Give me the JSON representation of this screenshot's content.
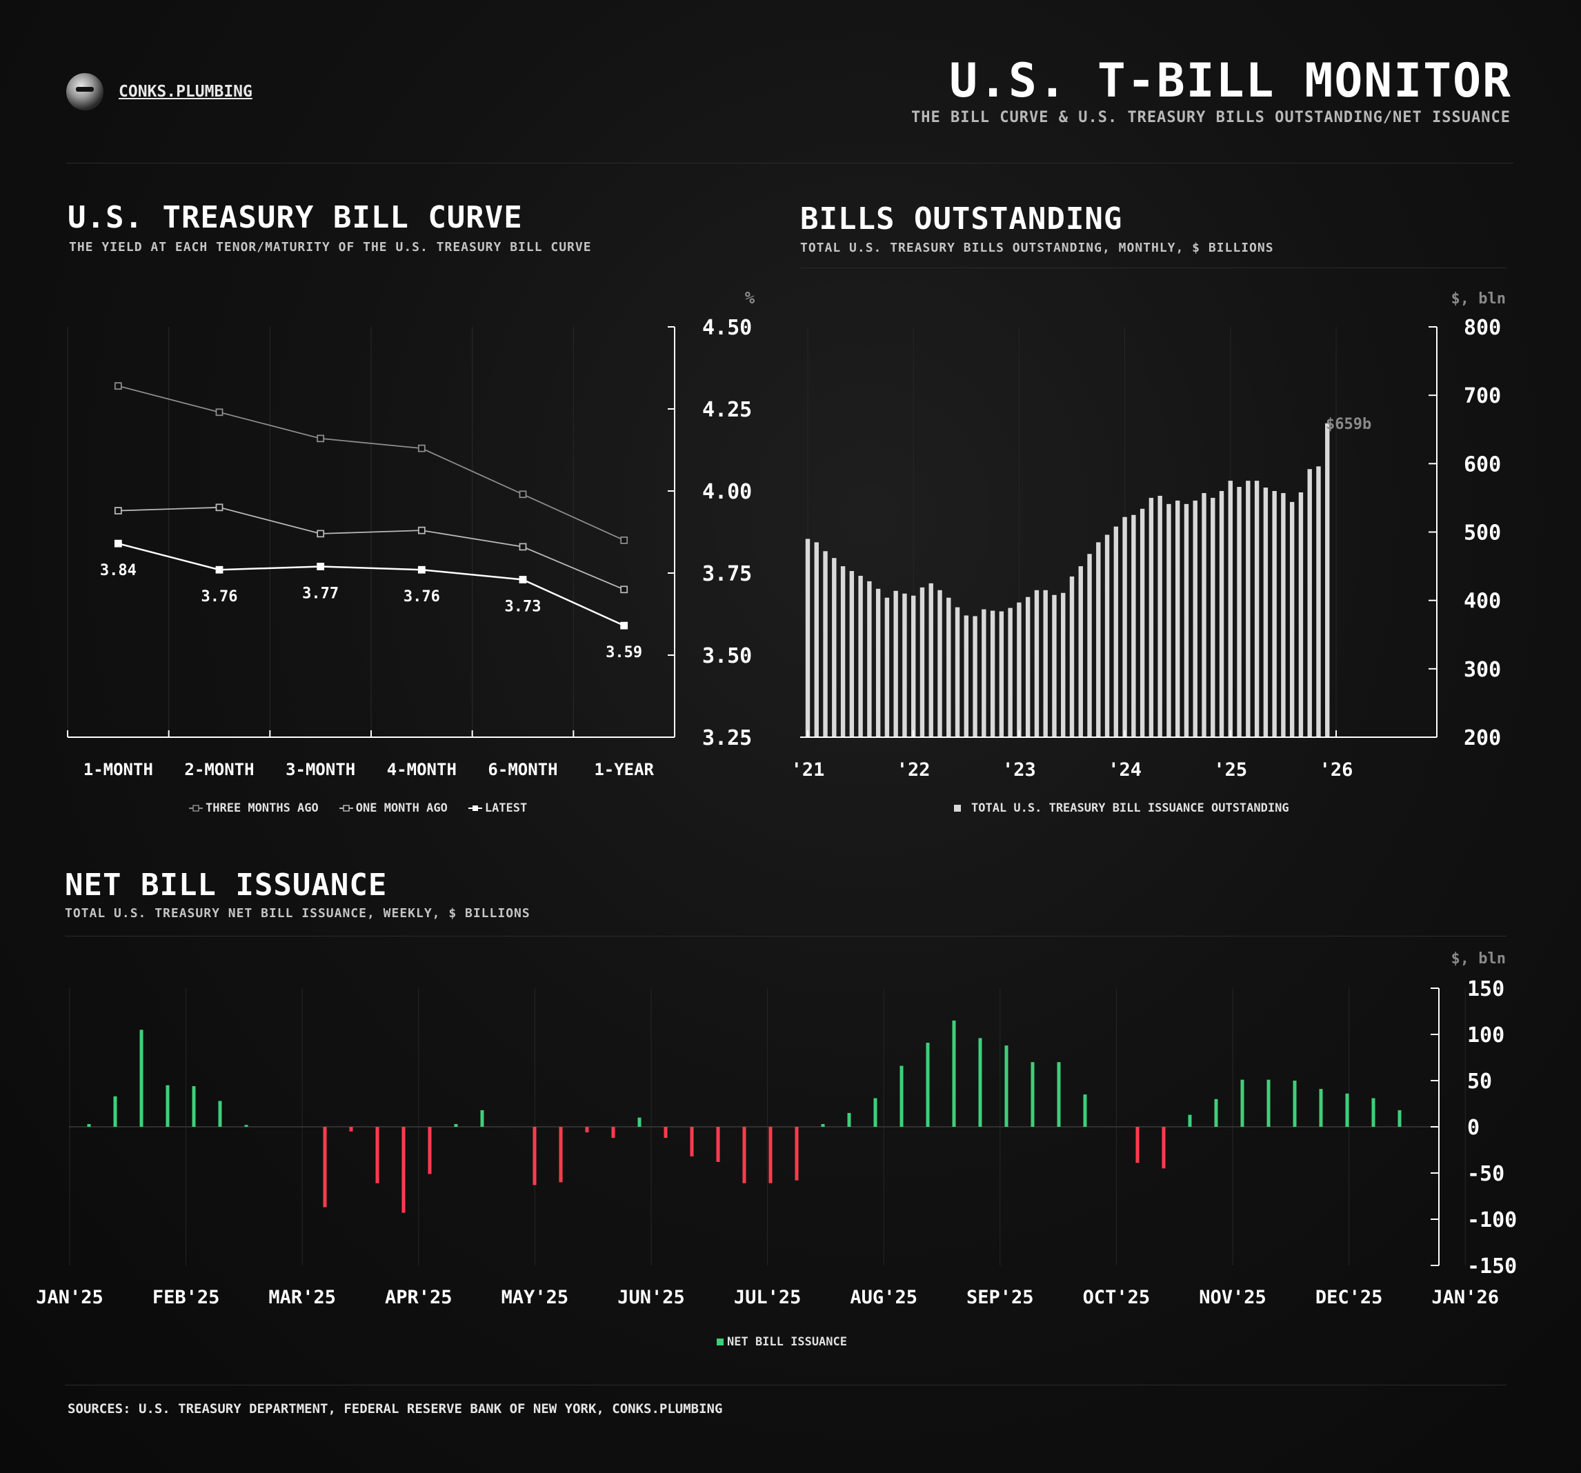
{
  "header": {
    "brand": "CONKS.PLUMBING",
    "title": "U.S. T-BILL MONITOR",
    "subtitle": "THE BILL CURVE & U.S. TREASURY BILLS OUTSTANDING/NET ISSUANCE"
  },
  "curve": {
    "title": "U.S. TREASURY BILL CURVE",
    "subtitle": "THE YIELD AT EACH TENOR/MATURITY OF THE U.S. TREASURY BILL CURVE",
    "unit": "%",
    "legend": [
      "THREE MONTHS AGO",
      "ONE MONTH AGO",
      "LATEST"
    ]
  },
  "outstanding": {
    "title": "BILLS OUTSTANDING",
    "subtitle": "TOTAL U.S. TREASURY BILLS OUTSTANDING, MONTHLY, $ BILLIONS",
    "unit": "$, bln",
    "annotation": "$659b",
    "legend": "TOTAL U.S. TREASURY BILL ISSUANCE OUTSTANDING"
  },
  "issuance": {
    "title": "NET BILL ISSUANCE",
    "subtitle": "TOTAL U.S. TREASURY NET BILL ISSUANCE, WEEKLY, $ BILLIONS",
    "unit": "$, bln",
    "legend": "NET BILL ISSUANCE"
  },
  "sources": "SOURCES: U.S. TREASURY DEPARTMENT, FEDERAL RESERVE BANK OF NEW YORK, CONKS.PLUMBING",
  "colors": {
    "positive": "#3ecf7a",
    "negative": "#ff3b4e",
    "bars": "#d9d9d9",
    "three_months_ago": "#8c8c8c",
    "one_month_ago": "#b8b8b8",
    "latest": "#ffffff"
  },
  "chart_data": [
    {
      "type": "line",
      "categories": [
        "1-MONTH",
        "2-MONTH",
        "3-MONTH",
        "4-MONTH",
        "6-MONTH",
        "1-YEAR"
      ],
      "series": [
        {
          "name": "THREE MONTHS AGO",
          "values": [
            4.32,
            4.24,
            4.16,
            4.13,
            3.99,
            3.85
          ]
        },
        {
          "name": "ONE MONTH AGO",
          "values": [
            3.94,
            3.95,
            3.87,
            3.88,
            3.83,
            3.7
          ]
        },
        {
          "name": "LATEST",
          "values": [
            3.84,
            3.76,
            3.77,
            3.76,
            3.73,
            3.59
          ]
        }
      ],
      "data_labels": [
        "3.84",
        "3.76",
        "3.77",
        "3.76",
        "3.73",
        "3.59"
      ],
      "ylim": [
        3.25,
        4.5
      ],
      "yticks": [
        "4.50",
        "4.25",
        "4.00",
        "3.75",
        "3.50",
        "3.25"
      ]
    },
    {
      "type": "bar",
      "series": [
        {
          "name": "TOTAL U.S. TREASURY BILL ISSUANCE OUTSTANDING",
          "values": [
            490,
            485,
            472,
            462,
            450,
            443,
            436,
            428,
            417,
            404,
            414,
            410,
            407,
            419,
            425,
            415,
            404,
            390,
            378,
            377,
            387,
            385,
            384,
            389,
            397,
            405,
            415,
            415,
            408,
            411,
            435,
            450,
            468,
            485,
            496,
            508,
            522,
            525,
            534,
            550,
            553,
            541,
            546,
            541,
            546,
            557,
            550,
            560,
            575,
            566,
            575,
            575,
            565,
            560,
            557,
            544,
            558,
            592,
            596,
            659
          ]
        }
      ],
      "x_start": "2021-01",
      "x_step": "1 month",
      "xticks": [
        "'21",
        "'22",
        "'23",
        "'24",
        "'25",
        "'26"
      ],
      "ylim": [
        200,
        800
      ],
      "yticks": [
        "800",
        "700",
        "600",
        "500",
        "400",
        "300",
        "200"
      ]
    },
    {
      "type": "bar",
      "series": [
        {
          "name": "NET BILL ISSUANCE",
          "values": [
            3,
            33,
            105,
            45,
            44,
            28,
            2,
            0,
            0,
            -87,
            -5,
            -61,
            -93,
            -51,
            3,
            18,
            0,
            -63,
            -60,
            -6,
            -12,
            10,
            -12,
            -32,
            -38,
            -61,
            -61,
            -58,
            3,
            15,
            31,
            66,
            91,
            115,
            96,
            88,
            70,
            70,
            35,
            0,
            -39,
            -45,
            13,
            30,
            51,
            51,
            50,
            41,
            36,
            31,
            18
          ]
        }
      ],
      "x_start": "2025-01-03",
      "x_step": "1 week",
      "xticks": [
        "JAN'25",
        "FEB'25",
        "MAR'25",
        "APR'25",
        "MAY'25",
        "JUN'25",
        "JUL'25",
        "AUG'25",
        "SEP'25",
        "OCT'25",
        "NOV'25",
        "DEC'25",
        "JAN'26"
      ],
      "ylim": [
        -150,
        150
      ],
      "yticks": [
        "150",
        "100",
        "50",
        "0",
        "-50",
        "-100",
        "-150"
      ]
    }
  ]
}
